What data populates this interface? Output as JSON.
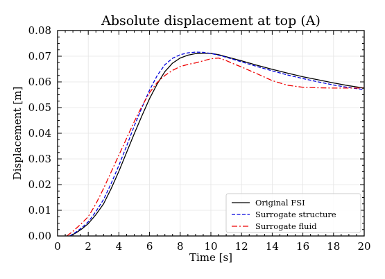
{
  "chart_data": {
    "type": "line",
    "title": "Absolute displacement at top (A)",
    "xlabel": "Time [s]",
    "ylabel": "Displacement [m]",
    "xlim": [
      0,
      20
    ],
    "ylim": [
      0,
      0.08
    ],
    "xticks": [
      0,
      2,
      4,
      6,
      8,
      10,
      12,
      14,
      16,
      18,
      20
    ],
    "xtick_labels": [
      "0",
      "2",
      "4",
      "6",
      "8",
      "10",
      "12",
      "14",
      "16",
      "18",
      "20"
    ],
    "yticks": [
      0,
      0.01,
      0.02,
      0.03,
      0.04,
      0.05,
      0.06,
      0.07,
      0.08
    ],
    "ytick_labels": [
      "0.00",
      "0.01",
      "0.02",
      "0.03",
      "0.04",
      "0.05",
      "0.06",
      "0.07",
      "0.08"
    ],
    "grid": true,
    "legend_position": "bottom-right",
    "series": [
      {
        "name": "Original FSI",
        "color": "#000000",
        "style": "solid",
        "x": [
          0.8,
          1.2,
          1.6,
          2.0,
          2.5,
          3.0,
          3.5,
          4.0,
          4.5,
          5.0,
          5.5,
          6.0,
          6.5,
          7.0,
          7.5,
          8.0,
          8.5,
          9.0,
          9.5,
          10.0,
          10.5,
          11.0,
          12.0,
          13.0,
          14.0,
          15.0,
          16.0,
          17.0,
          18.0,
          19.0,
          20.0
        ],
        "y": [
          0.0,
          0.0012,
          0.0028,
          0.0048,
          0.0083,
          0.0125,
          0.0185,
          0.0252,
          0.0325,
          0.0398,
          0.0468,
          0.0535,
          0.0592,
          0.064,
          0.0673,
          0.0693,
          0.0704,
          0.071,
          0.0712,
          0.0711,
          0.0706,
          0.0698,
          0.0682,
          0.0665,
          0.0649,
          0.0634,
          0.062,
          0.0608,
          0.0596,
          0.0585,
          0.0576
        ]
      },
      {
        "name": "Surrogate structure",
        "color": "#0000dd",
        "style": "dashed",
        "x": [
          0.8,
          1.2,
          1.6,
          2.0,
          2.5,
          3.0,
          3.5,
          4.0,
          4.5,
          5.0,
          5.5,
          6.0,
          6.5,
          7.0,
          7.5,
          8.0,
          8.5,
          9.0,
          9.5,
          10.0,
          10.5,
          11.0,
          12.0,
          13.0,
          14.0,
          15.0,
          16.0,
          17.0,
          18.0,
          19.0,
          20.0
        ],
        "y": [
          0.0,
          0.0015,
          0.0033,
          0.0055,
          0.0095,
          0.0142,
          0.0205,
          0.0275,
          0.035,
          0.0428,
          0.05,
          0.0568,
          0.0625,
          0.0667,
          0.0692,
          0.0706,
          0.0713,
          0.0716,
          0.0715,
          0.0711,
          0.0704,
          0.0696,
          0.0678,
          0.066,
          0.0643,
          0.0627,
          0.0613,
          0.06,
          0.0588,
          0.0578,
          0.057
        ]
      },
      {
        "name": "Surrogate fluid",
        "color": "#ee0000",
        "style": "dashdot",
        "x": [
          0.6,
          1.0,
          1.5,
          2.0,
          2.5,
          3.0,
          3.5,
          4.0,
          4.5,
          5.0,
          5.5,
          6.0,
          6.5,
          7.0,
          7.5,
          8.0,
          8.5,
          9.0,
          9.5,
          10.0,
          10.5,
          11.0,
          11.5,
          12.0,
          13.0,
          14.0,
          15.0,
          16.0,
          17.0,
          18.0,
          19.0,
          20.0
        ],
        "y": [
          0.0,
          0.0018,
          0.0045,
          0.0075,
          0.0125,
          0.0185,
          0.025,
          0.0315,
          0.038,
          0.0445,
          0.0505,
          0.0558,
          0.0598,
          0.0625,
          0.0645,
          0.066,
          0.0668,
          0.0674,
          0.0682,
          0.069,
          0.0693,
          0.0683,
          0.067,
          0.0658,
          0.0632,
          0.0605,
          0.0587,
          0.0579,
          0.0577,
          0.0576,
          0.0576,
          0.0576
        ]
      }
    ]
  }
}
